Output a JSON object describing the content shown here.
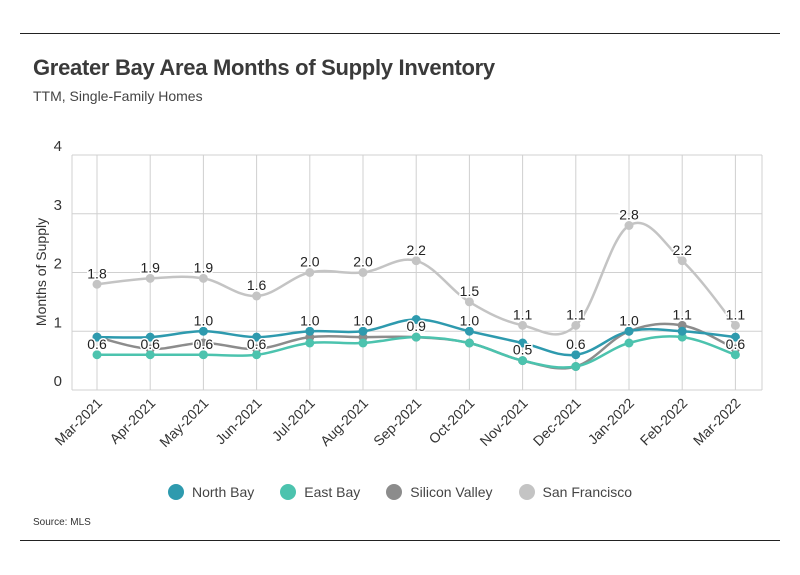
{
  "header": {
    "title": "Greater Bay Area Months of Supply Inventory",
    "subtitle": "TTM, Single-Family Homes"
  },
  "footer": {
    "source": "Source:  MLS"
  },
  "chart_data": {
    "type": "line",
    "title": "Greater Bay Area Months of Supply Inventory",
    "subtitle": "TTM, Single-Family Homes",
    "xlabel": "",
    "ylabel": "Months of Supply",
    "ylim": [
      0,
      4
    ],
    "yticks": [
      0,
      1,
      2,
      3,
      4
    ],
    "grid": true,
    "legend_position": "bottom",
    "categories": [
      "Mar-2021",
      "Apr-2021",
      "May-2021",
      "Jun-2021",
      "Jul-2021",
      "Aug-2021",
      "Sep-2021",
      "Oct-2021",
      "Nov-2021",
      "Dec-2021",
      "Jan-2022",
      "Feb-2022",
      "Mar-2022"
    ],
    "series": [
      {
        "name": "North Bay",
        "color": "#2e9aae",
        "values": [
          0.9,
          0.9,
          1.0,
          0.9,
          1.0,
          1.0,
          1.2,
          1.0,
          0.8,
          0.6,
          1.0,
          1.0,
          0.9
        ],
        "labels": [
          null,
          null,
          "1.0",
          null,
          "1.0",
          "1.0",
          null,
          "1.0",
          null,
          "0.6",
          "1.0",
          null,
          null
        ]
      },
      {
        "name": "East Bay",
        "color": "#4cc3ae",
        "values": [
          0.6,
          0.6,
          0.6,
          0.6,
          0.8,
          0.8,
          0.9,
          0.8,
          0.5,
          0.4,
          0.8,
          0.9,
          0.6
        ],
        "labels": [
          "0.6",
          "0.6",
          "0.6",
          "0.6",
          null,
          null,
          null,
          null,
          "0.5",
          null,
          null,
          null,
          "0.6"
        ]
      },
      {
        "name": "Silicon Valley",
        "color": "#8c8c8c",
        "values": [
          0.9,
          0.7,
          0.8,
          0.7,
          0.9,
          0.9,
          0.9,
          0.8,
          0.5,
          0.4,
          1.0,
          1.1,
          0.7
        ],
        "labels": [
          null,
          null,
          null,
          null,
          null,
          null,
          "0.9",
          null,
          null,
          null,
          null,
          "1.1",
          null
        ]
      },
      {
        "name": "San Francisco",
        "color": "#c4c4c4",
        "values": [
          1.8,
          1.9,
          1.9,
          1.6,
          2.0,
          2.0,
          2.2,
          1.5,
          1.1,
          1.1,
          2.8,
          2.2,
          1.1
        ],
        "labels": [
          "1.8",
          "1.9",
          "1.9",
          "1.6",
          "2.0",
          "2.0",
          "2.2",
          "1.5",
          "1.1",
          "1.1",
          "2.8",
          "2.2",
          "1.1"
        ]
      }
    ]
  }
}
